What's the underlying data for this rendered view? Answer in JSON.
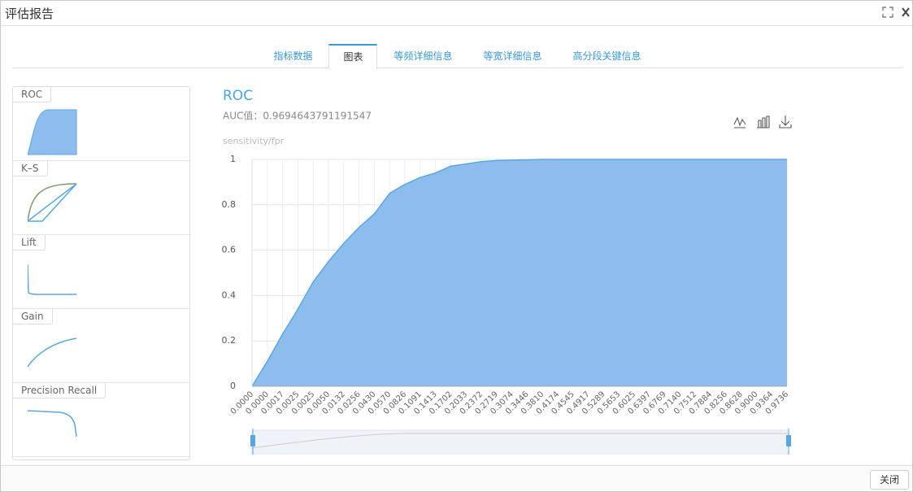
{
  "window": {
    "title": "评估报告",
    "close_button": "关闭"
  },
  "tabs": {
    "items": [
      "指标数据",
      "图表",
      "等频详细信息",
      "等宽详细信息",
      "高分段关键信息"
    ],
    "active": 1
  },
  "sidebar": [
    "ROC",
    "K–S",
    "Lift",
    "Gain",
    "Precision Recall"
  ],
  "chart_data": {
    "type": "area",
    "title": "ROC",
    "subtitle": "AUC值：0.9694643791191547",
    "y_label": "sensitivity/fpr",
    "categories": [
      "0.0000",
      "0.0000",
      "0.0017",
      "0.0025",
      "0.0025",
      "0.0050",
      "0.0132",
      "0.0256",
      "0.0430",
      "0.0570",
      "0.0826",
      "0.1091",
      "0.1413",
      "0.1702",
      "0.2033",
      "0.2372",
      "0.2719",
      "0.3074",
      "0.3446",
      "0.3810",
      "0.4174",
      "0.4545",
      "0.4917",
      "0.5289",
      "0.5653",
      "0.6025",
      "0.6397",
      "0.6769",
      "0.7140",
      "0.7512",
      "0.7884",
      "0.8256",
      "0.8628",
      "0.9000",
      "0.9364",
      "0.9736"
    ],
    "values": [
      0,
      0.11,
      0.23,
      0.34,
      0.46,
      0.55,
      0.63,
      0.7,
      0.76,
      0.85,
      0.89,
      0.92,
      0.94,
      0.97,
      0.98,
      0.99,
      0.995,
      0.997,
      0.998,
      1,
      1,
      1,
      1,
      1,
      1,
      1,
      1,
      1,
      1,
      1,
      1,
      1,
      1,
      1,
      1,
      1
    ],
    "color": "#8dbdec",
    "line_color": "#5ba6e2",
    "ylim": [
      0,
      1
    ],
    "yticks": [
      0,
      0.2,
      0.4,
      0.6,
      0.8,
      1
    ],
    "grid": true
  }
}
